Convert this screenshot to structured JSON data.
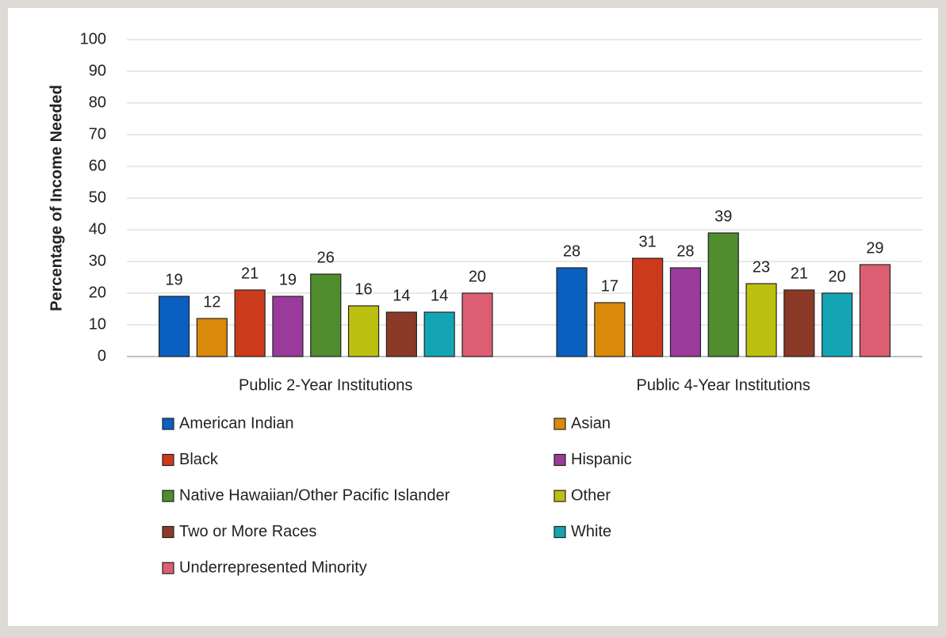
{
  "chart_data": {
    "type": "bar",
    "y_label": "Percentage of Income Needed",
    "categories": [
      "Public 2-Year Institutions",
      "Public 4-Year Institutions"
    ],
    "series": [
      {
        "name": "American Indian",
        "color": "#0a5fc0",
        "values": [
          19,
          28
        ]
      },
      {
        "name": "Asian",
        "color": "#d98a0a",
        "values": [
          12,
          17
        ]
      },
      {
        "name": "Black",
        "color": "#cc3a1c",
        "values": [
          21,
          31
        ]
      },
      {
        "name": "Hispanic",
        "color": "#9a3a9a",
        "values": [
          19,
          28
        ]
      },
      {
        "name": "Native Hawaiian/Other Pacific Islander",
        "color": "#4e8c2e",
        "values": [
          26,
          39
        ]
      },
      {
        "name": "Other",
        "color": "#bcc010",
        "values": [
          16,
          23
        ]
      },
      {
        "name": "Two or More Races",
        "color": "#8b3a28",
        "values": [
          14,
          21
        ]
      },
      {
        "name": "White",
        "color": "#14a5b5",
        "values": [
          14,
          20
        ]
      },
      {
        "name": "Underrepresented Minority",
        "color": "#dd5e72",
        "values": [
          20,
          29
        ]
      }
    ],
    "ylim": [
      0,
      100
    ],
    "yticks": [
      0,
      10,
      20,
      30,
      40,
      50,
      60,
      70,
      80,
      90,
      100
    ],
    "grid": true,
    "legend": "bottom"
  }
}
